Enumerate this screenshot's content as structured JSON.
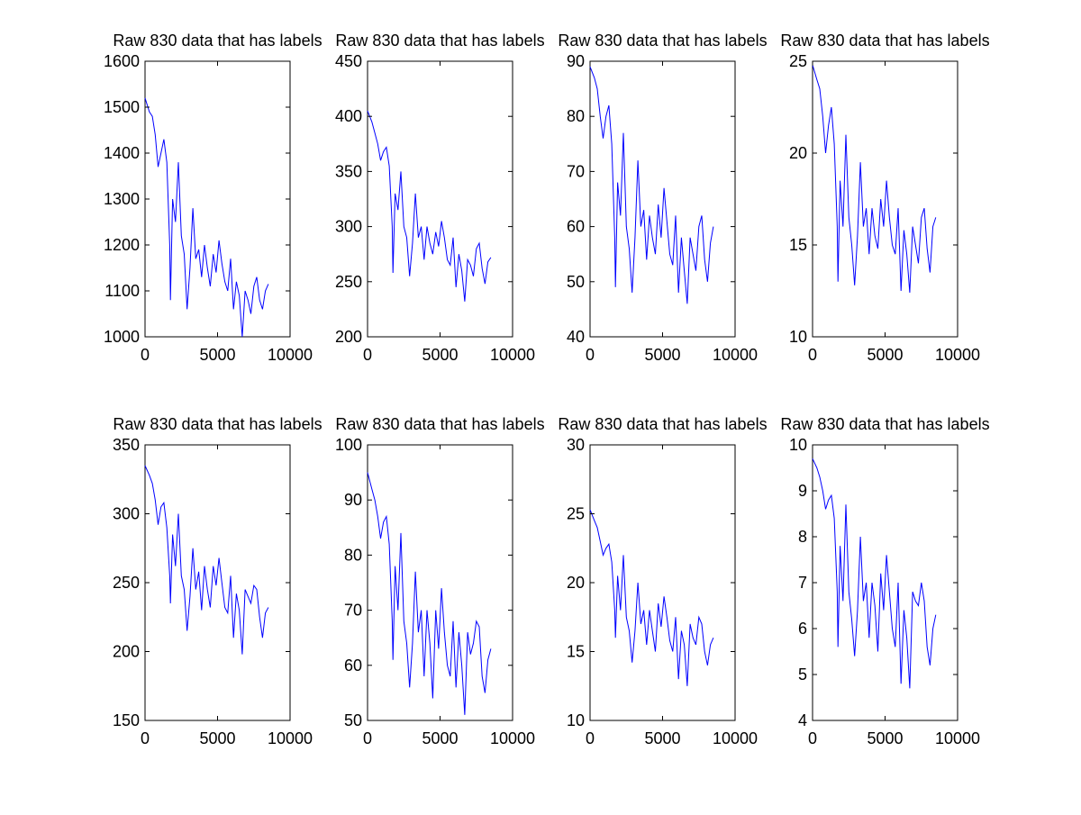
{
  "figure": {
    "background": "#ffffff",
    "line_color": "#0000ff"
  },
  "chart_data": [
    {
      "type": "line",
      "title": "Raw 830 data that has labels",
      "xlabel": "",
      "ylabel": "",
      "xlim": [
        0,
        10000
      ],
      "ylim": [
        1000,
        1600
      ],
      "xticks": [
        0,
        5000,
        10000
      ],
      "yticks": [
        1000,
        1100,
        1200,
        1300,
        1400,
        1500,
        1600
      ],
      "grid": false,
      "series": [
        {
          "color": "#0000ff",
          "x": [
            0,
            300,
            500,
            700,
            900,
            1100,
            1300,
            1500,
            1700,
            1750,
            1900,
            2100,
            2300,
            2500,
            2700,
            2900,
            3100,
            3300,
            3500,
            3700,
            3900,
            4100,
            4300,
            4500,
            4700,
            4900,
            5100,
            5300,
            5500,
            5700,
            5900,
            6100,
            6300,
            6500,
            6700,
            6900,
            7100,
            7300,
            7500,
            7700,
            7900,
            8100,
            8300,
            8500
          ],
          "y": [
            1520,
            1490,
            1480,
            1440,
            1370,
            1400,
            1430,
            1380,
            1200,
            1080,
            1300,
            1250,
            1380,
            1220,
            1180,
            1060,
            1150,
            1280,
            1170,
            1190,
            1130,
            1200,
            1150,
            1110,
            1180,
            1140,
            1210,
            1160,
            1120,
            1100,
            1170,
            1060,
            1120,
            1090,
            1000,
            1100,
            1080,
            1050,
            1110,
            1130,
            1080,
            1060,
            1100,
            1115
          ]
        }
      ]
    },
    {
      "type": "line",
      "title": "Raw 830 data that has labels",
      "xlabel": "",
      "ylabel": "",
      "xlim": [
        0,
        10000
      ],
      "ylim": [
        200,
        450
      ],
      "xticks": [
        0,
        5000,
        10000
      ],
      "yticks": [
        200,
        250,
        300,
        350,
        400,
        450
      ],
      "grid": false,
      "series": [
        {
          "color": "#0000ff",
          "x": [
            0,
            300,
            500,
            700,
            900,
            1100,
            1300,
            1500,
            1700,
            1750,
            1900,
            2100,
            2300,
            2500,
            2700,
            2900,
            3100,
            3300,
            3500,
            3700,
            3900,
            4100,
            4300,
            4500,
            4700,
            4900,
            5100,
            5300,
            5500,
            5700,
            5900,
            6100,
            6300,
            6500,
            6700,
            6900,
            7100,
            7300,
            7500,
            7700,
            7900,
            8100,
            8300,
            8500
          ],
          "y": [
            405,
            395,
            385,
            375,
            360,
            368,
            372,
            355,
            300,
            258,
            330,
            315,
            350,
            300,
            290,
            255,
            285,
            330,
            290,
            300,
            270,
            300,
            285,
            275,
            295,
            282,
            305,
            290,
            270,
            265,
            290,
            245,
            275,
            260,
            232,
            270,
            265,
            255,
            280,
            285,
            262,
            248,
            268,
            272
          ]
        }
      ]
    },
    {
      "type": "line",
      "title": "Raw 830 data that has labels",
      "xlabel": "",
      "ylabel": "",
      "xlim": [
        0,
        10000
      ],
      "ylim": [
        40,
        90
      ],
      "xticks": [
        0,
        5000,
        10000
      ],
      "yticks": [
        40,
        50,
        60,
        70,
        80,
        90
      ],
      "grid": false,
      "series": [
        {
          "color": "#0000ff",
          "x": [
            0,
            300,
            500,
            700,
            900,
            1100,
            1300,
            1500,
            1700,
            1750,
            1900,
            2100,
            2300,
            2500,
            2700,
            2900,
            3100,
            3300,
            3500,
            3700,
            3900,
            4100,
            4300,
            4500,
            4700,
            4900,
            5100,
            5300,
            5500,
            5700,
            5900,
            6100,
            6300,
            6500,
            6700,
            6900,
            7100,
            7300,
            7500,
            7700,
            7900,
            8100,
            8300,
            8500
          ],
          "y": [
            89,
            87,
            85,
            80,
            76,
            80,
            82,
            75,
            58,
            49,
            68,
            62,
            77,
            60,
            56,
            48,
            58,
            72,
            60,
            63,
            54,
            62,
            58,
            55,
            64,
            58,
            67,
            61,
            55,
            53,
            62,
            48,
            58,
            52,
            46,
            58,
            55,
            52,
            60,
            62,
            54,
            50,
            57,
            60
          ]
        }
      ]
    },
    {
      "type": "line",
      "title": "Raw 830 data that has labels",
      "xlabel": "",
      "ylabel": "",
      "xlim": [
        0,
        10000
      ],
      "ylim": [
        10,
        25
      ],
      "xticks": [
        0,
        5000,
        10000
      ],
      "yticks": [
        10,
        15,
        20,
        25
      ],
      "grid": false,
      "series": [
        {
          "color": "#0000ff",
          "x": [
            0,
            300,
            500,
            700,
            900,
            1100,
            1300,
            1500,
            1700,
            1750,
            1900,
            2100,
            2300,
            2500,
            2700,
            2900,
            3100,
            3300,
            3500,
            3700,
            3900,
            4100,
            4300,
            4500,
            4700,
            4900,
            5100,
            5300,
            5500,
            5700,
            5900,
            6100,
            6300,
            6500,
            6700,
            6900,
            7100,
            7300,
            7500,
            7700,
            7900,
            8100,
            8300,
            8500
          ],
          "y": [
            24.8,
            24,
            23.5,
            22,
            20,
            21.5,
            22.5,
            20.5,
            16,
            13,
            18.5,
            16,
            21,
            16.5,
            15,
            12.8,
            15.5,
            19.5,
            16,
            17,
            14.5,
            17,
            15.5,
            14.8,
            17.5,
            16,
            18.5,
            16.5,
            15,
            14.5,
            17,
            12.5,
            15.8,
            14.5,
            12.4,
            16,
            15,
            14,
            16.5,
            17,
            14.8,
            13.5,
            16,
            16.5
          ]
        }
      ]
    },
    {
      "type": "line",
      "title": "Raw 830 data that has labels",
      "xlabel": "",
      "ylabel": "",
      "xlim": [
        0,
        10000
      ],
      "ylim": [
        150,
        350
      ],
      "xticks": [
        0,
        5000,
        10000
      ],
      "yticks": [
        150,
        200,
        250,
        300,
        350
      ],
      "grid": false,
      "series": [
        {
          "color": "#0000ff",
          "x": [
            0,
            300,
            500,
            700,
            900,
            1100,
            1300,
            1500,
            1700,
            1750,
            1900,
            2100,
            2300,
            2500,
            2700,
            2900,
            3100,
            3300,
            3500,
            3700,
            3900,
            4100,
            4300,
            4500,
            4700,
            4900,
            5100,
            5300,
            5500,
            5700,
            5900,
            6100,
            6300,
            6500,
            6700,
            6900,
            7100,
            7300,
            7500,
            7700,
            7900,
            8100,
            8300,
            8500
          ],
          "y": [
            335,
            328,
            322,
            310,
            292,
            305,
            308,
            290,
            255,
            235,
            285,
            262,
            300,
            255,
            245,
            215,
            240,
            275,
            245,
            258,
            230,
            262,
            245,
            232,
            262,
            248,
            268,
            250,
            232,
            228,
            255,
            210,
            242,
            230,
            198,
            245,
            240,
            235,
            248,
            245,
            225,
            210,
            228,
            232
          ]
        }
      ]
    },
    {
      "type": "line",
      "title": "Raw 830 data that has labels",
      "xlabel": "",
      "ylabel": "",
      "xlim": [
        0,
        10000
      ],
      "ylim": [
        50,
        100
      ],
      "xticks": [
        0,
        5000,
        10000
      ],
      "yticks": [
        50,
        60,
        70,
        80,
        90,
        100
      ],
      "grid": false,
      "series": [
        {
          "color": "#0000ff",
          "x": [
            0,
            300,
            500,
            700,
            900,
            1100,
            1300,
            1500,
            1700,
            1750,
            1900,
            2100,
            2300,
            2500,
            2700,
            2900,
            3100,
            3300,
            3500,
            3700,
            3900,
            4100,
            4300,
            4500,
            4700,
            4900,
            5100,
            5300,
            5500,
            5700,
            5900,
            6100,
            6300,
            6500,
            6700,
            6900,
            7100,
            7300,
            7500,
            7700,
            7900,
            8100,
            8300,
            8500
          ],
          "y": [
            95,
            92,
            90,
            87,
            83,
            86,
            87,
            82,
            68,
            61,
            78,
            70,
            84,
            68,
            64,
            56,
            64,
            77,
            66,
            70,
            58,
            70,
            64,
            54,
            70,
            63,
            74,
            66,
            60,
            58,
            68,
            56,
            66,
            60,
            51,
            66,
            62,
            64,
            68,
            67,
            58,
            55,
            61,
            63
          ]
        }
      ]
    },
    {
      "type": "line",
      "title": "Raw 830 data that has labels",
      "xlabel": "",
      "ylabel": "",
      "xlim": [
        0,
        10000
      ],
      "ylim": [
        10,
        30
      ],
      "xticks": [
        0,
        5000,
        10000
      ],
      "yticks": [
        10,
        15,
        20,
        25,
        30
      ],
      "grid": false,
      "series": [
        {
          "color": "#0000ff",
          "x": [
            0,
            300,
            500,
            700,
            900,
            1100,
            1300,
            1500,
            1700,
            1750,
            1900,
            2100,
            2300,
            2500,
            2700,
            2900,
            3100,
            3300,
            3500,
            3700,
            3900,
            4100,
            4300,
            4500,
            4700,
            4900,
            5100,
            5300,
            5500,
            5700,
            5900,
            6100,
            6300,
            6500,
            6700,
            6900,
            7100,
            7300,
            7500,
            7700,
            7900,
            8100,
            8300,
            8500
          ],
          "y": [
            25.3,
            24.5,
            24,
            23,
            22,
            22.5,
            22.8,
            21.5,
            18,
            16,
            20.5,
            18,
            22,
            17.5,
            16.5,
            14.2,
            16.5,
            20,
            17,
            18,
            15.5,
            18,
            16.5,
            15,
            18.5,
            16.8,
            19,
            17.5,
            15.8,
            15,
            17.5,
            13,
            16.5,
            15.5,
            12.5,
            17,
            16,
            15.5,
            17.5,
            17,
            15,
            14,
            15.5,
            16
          ]
        }
      ]
    },
    {
      "type": "line",
      "title": "Raw 830 data that has labels",
      "xlabel": "",
      "ylabel": "",
      "xlim": [
        0,
        10000
      ],
      "ylim": [
        4,
        10
      ],
      "xticks": [
        0,
        5000,
        10000
      ],
      "yticks": [
        4,
        5,
        6,
        7,
        8,
        9,
        10
      ],
      "grid": false,
      "series": [
        {
          "color": "#0000ff",
          "x": [
            0,
            300,
            500,
            700,
            900,
            1100,
            1300,
            1500,
            1700,
            1750,
            1900,
            2100,
            2300,
            2500,
            2700,
            2900,
            3100,
            3300,
            3500,
            3700,
            3900,
            4100,
            4300,
            4500,
            4700,
            4900,
            5100,
            5300,
            5500,
            5700,
            5900,
            6100,
            6300,
            6500,
            6700,
            6900,
            7100,
            7300,
            7500,
            7700,
            7900,
            8100,
            8300,
            8500
          ],
          "y": [
            9.7,
            9.5,
            9.3,
            9,
            8.6,
            8.8,
            8.9,
            8.4,
            6.8,
            5.6,
            7.8,
            6.6,
            8.7,
            6.8,
            6.2,
            5.4,
            6.4,
            8,
            6.6,
            7,
            5.8,
            7,
            6.5,
            5.5,
            7.2,
            6.4,
            7.6,
            6.8,
            6,
            5.6,
            7,
            4.8,
            6.4,
            5.8,
            4.7,
            6.8,
            6.6,
            6.5,
            7,
            6.6,
            5.6,
            5.2,
            6,
            6.3
          ]
        }
      ]
    }
  ]
}
